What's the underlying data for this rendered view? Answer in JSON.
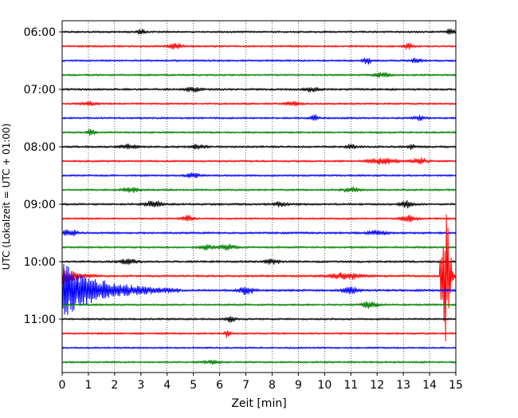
{
  "chart_data": {
    "type": "line",
    "subtype": "helicorder-seismogram",
    "title": "",
    "xlabel": "Zeit  [min]",
    "ylabel": "UTC (Lokalzeit = UTC + 01:00)",
    "xlim": [
      0,
      15
    ],
    "x_ticks": [
      0,
      1,
      2,
      3,
      4,
      5,
      6,
      7,
      8,
      9,
      10,
      11,
      12,
      13,
      14,
      15
    ],
    "x_tick_labels": [
      "0",
      "1",
      "2",
      "3",
      "4",
      "5",
      "6",
      "7",
      "8",
      "9",
      "10",
      "11",
      "12",
      "13",
      "14",
      "15"
    ],
    "y_tick_labels": [
      "06:00",
      "07:00",
      "08:00",
      "09:00",
      "10:00",
      "11:00"
    ],
    "y_label_every_n_traces": 4,
    "trace_minutes_per_line": 15,
    "grid": {
      "x_vertical_dotted": true,
      "y": false
    },
    "colors": {
      "cycle": [
        "#000000",
        "#ff0000",
        "#0000ff",
        "#008000"
      ],
      "grid": "#000000",
      "axes": "#000000",
      "background": "#ffffff"
    },
    "traces": [
      {
        "start": "06:00",
        "color": "#000000",
        "noise": 1.0,
        "events": [
          {
            "t": 3.0,
            "amp": 2.5,
            "w": 0.15
          },
          {
            "t": 14.8,
            "amp": 3.0,
            "w": 0.15
          }
        ]
      },
      {
        "start": "06:15",
        "color": "#ff0000",
        "noise": 1.0,
        "events": [
          {
            "t": 4.3,
            "amp": 2.5,
            "w": 0.3
          },
          {
            "t": 13.2,
            "amp": 2.5,
            "w": 0.2
          }
        ]
      },
      {
        "start": "06:30",
        "color": "#0000ff",
        "noise": 1.0,
        "events": [
          {
            "t": 11.6,
            "amp": 3.5,
            "w": 0.15
          },
          {
            "t": 13.5,
            "amp": 2.0,
            "w": 0.2
          }
        ]
      },
      {
        "start": "06:45",
        "color": "#008000",
        "noise": 1.0,
        "events": [
          {
            "t": 12.2,
            "amp": 2.0,
            "w": 0.3
          }
        ]
      },
      {
        "start": "07:00",
        "color": "#000000",
        "noise": 1.1,
        "events": [
          {
            "t": 5.0,
            "amp": 2.0,
            "w": 0.3
          },
          {
            "t": 9.5,
            "amp": 2.0,
            "w": 0.3
          }
        ]
      },
      {
        "start": "07:15",
        "color": "#ff0000",
        "noise": 1.0,
        "events": [
          {
            "t": 1.0,
            "amp": 2.0,
            "w": 0.3
          },
          {
            "t": 8.8,
            "amp": 2.0,
            "w": 0.3
          }
        ]
      },
      {
        "start": "07:30",
        "color": "#0000ff",
        "noise": 1.0,
        "events": [
          {
            "t": 9.6,
            "amp": 3.0,
            "w": 0.15
          },
          {
            "t": 13.6,
            "amp": 2.0,
            "w": 0.2
          }
        ]
      },
      {
        "start": "07:45",
        "color": "#008000",
        "noise": 1.0,
        "events": [
          {
            "t": 1.1,
            "amp": 3.0,
            "w": 0.15
          }
        ]
      },
      {
        "start": "08:00",
        "color": "#000000",
        "noise": 1.1,
        "events": [
          {
            "t": 2.5,
            "amp": 2.0,
            "w": 0.3
          },
          {
            "t": 5.2,
            "amp": 2.0,
            "w": 0.3
          },
          {
            "t": 11.0,
            "amp": 3.0,
            "w": 0.15
          },
          {
            "t": 13.3,
            "amp": 2.0,
            "w": 0.15
          }
        ]
      },
      {
        "start": "08:15",
        "color": "#ff0000",
        "noise": 1.0,
        "events": [
          {
            "t": 12.2,
            "amp": 2.5,
            "w": 0.6
          },
          {
            "t": 13.6,
            "amp": 3.0,
            "w": 0.3
          }
        ]
      },
      {
        "start": "08:30",
        "color": "#0000ff",
        "noise": 1.0,
        "events": [
          {
            "t": 5.0,
            "amp": 2.0,
            "w": 0.3
          }
        ]
      },
      {
        "start": "08:45",
        "color": "#008000",
        "noise": 1.0,
        "events": [
          {
            "t": 2.6,
            "amp": 2.5,
            "w": 0.3
          },
          {
            "t": 11.0,
            "amp": 2.5,
            "w": 0.3
          }
        ]
      },
      {
        "start": "09:00",
        "color": "#000000",
        "noise": 1.1,
        "events": [
          {
            "t": 3.5,
            "amp": 3.5,
            "w": 0.3
          },
          {
            "t": 8.3,
            "amp": 2.0,
            "w": 0.3
          },
          {
            "t": 13.1,
            "amp": 3.5,
            "w": 0.2
          }
        ]
      },
      {
        "start": "09:15",
        "color": "#ff0000",
        "noise": 1.0,
        "events": [
          {
            "t": 4.8,
            "amp": 3.0,
            "w": 0.2
          },
          {
            "t": 13.2,
            "amp": 3.0,
            "w": 0.3
          }
        ]
      },
      {
        "start": "09:30",
        "color": "#0000ff",
        "noise": 1.1,
        "events": [
          {
            "t": 0.3,
            "amp": 3.0,
            "w": 0.3
          },
          {
            "t": 12.0,
            "amp": 2.0,
            "w": 0.4
          }
        ]
      },
      {
        "start": "09:45",
        "color": "#008000",
        "noise": 1.0,
        "events": [
          {
            "t": 5.5,
            "amp": 2.0,
            "w": 0.3
          },
          {
            "t": 6.3,
            "amp": 2.5,
            "w": 0.3
          }
        ]
      },
      {
        "start": "10:00",
        "color": "#000000",
        "noise": 1.1,
        "events": [
          {
            "t": 2.5,
            "amp": 2.0,
            "w": 0.4
          },
          {
            "t": 8.0,
            "amp": 2.0,
            "w": 0.3
          }
        ]
      },
      {
        "start": "10:15",
        "color": "#ff0000",
        "noise": 1.1,
        "events": [
          {
            "t": 10.8,
            "amp": 3.0,
            "w": 0.6
          }
        ]
      },
      {
        "start": "10:30",
        "color": "#0000ff",
        "noise": 1.2,
        "events": [
          {
            "t": 7.0,
            "amp": 4.0,
            "w": 0.3
          },
          {
            "t": 11.0,
            "amp": 3.0,
            "w": 0.3
          }
        ]
      },
      {
        "start": "10:45",
        "color": "#008000",
        "noise": 1.0,
        "events": [
          {
            "t": 11.7,
            "amp": 3.0,
            "w": 0.3
          }
        ]
      },
      {
        "start": "11:00",
        "color": "#000000",
        "noise": 1.0,
        "events": [
          {
            "t": 6.4,
            "amp": 2.5,
            "w": 0.2
          }
        ]
      },
      {
        "start": "11:15",
        "color": "#ff0000",
        "noise": 1.0,
        "events": [
          {
            "t": 6.3,
            "amp": 4.0,
            "w": 0.1
          }
        ]
      },
      {
        "start": "11:30",
        "color": "#0000ff",
        "noise": 0.9,
        "events": []
      },
      {
        "start": "11:45",
        "color": "#008000",
        "noise": 1.0,
        "events": [
          {
            "t": 5.7,
            "amp": 2.0,
            "w": 0.3
          }
        ]
      }
    ],
    "special_events": [
      {
        "description": "earthquake coda",
        "trace_index": 18,
        "t_start": 0.0,
        "t_end": 4.5,
        "amp_max": 28,
        "color": "#0000ff"
      },
      {
        "description": "earthquake coda tail on previous trace",
        "trace_index": 17,
        "t_start": 0.0,
        "t_end": 1.5,
        "amp_max": 10,
        "color": "#ff0000"
      },
      {
        "description": "local spike",
        "trace_index": 17,
        "t_start": 14.4,
        "t_end": 15.0,
        "amp_max": 70,
        "color": "#ff0000"
      }
    ]
  }
}
